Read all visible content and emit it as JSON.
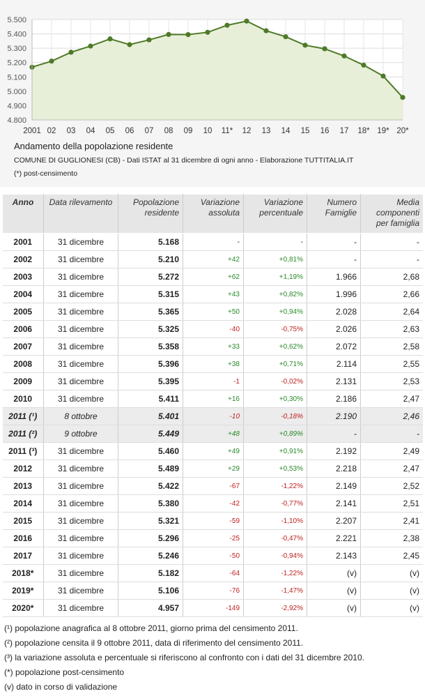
{
  "chart_data": {
    "type": "area",
    "title": "Andamento della popolazione residente",
    "subtitle": "COMUNE DI GUGLIONESI (CB) - Dati ISTAT al 31 dicembre di ogni anno - Elaborazione TUTTITALIA.IT",
    "note": "(*) post-censimento",
    "categories": [
      "2001",
      "02",
      "03",
      "04",
      "05",
      "06",
      "07",
      "08",
      "09",
      "10",
      "11*",
      "12",
      "13",
      "14",
      "15",
      "16",
      "17",
      "18*",
      "19*",
      "20*"
    ],
    "values": [
      5168,
      5210,
      5272,
      5315,
      5365,
      5325,
      5358,
      5396,
      5395,
      5411,
      5460,
      5489,
      5422,
      5380,
      5321,
      5296,
      5246,
      5182,
      5106,
      4957
    ],
    "y_ticks": [
      "4.800",
      "4.900",
      "5.000",
      "5.100",
      "5.200",
      "5.300",
      "5.400",
      "5.500"
    ],
    "ylim": [
      4800,
      5500
    ],
    "grid": true,
    "colors": {
      "line": "#4e7a28",
      "fill": "#e8efd8",
      "marker": "#4e7a28"
    }
  },
  "table": {
    "headers": [
      "Anno",
      "Data rilevamento",
      "Popolazione residente",
      "Variazione assoluta",
      "Variazione percentuale",
      "Numero Famiglie",
      "Media componenti per famiglia"
    ],
    "rows": [
      {
        "anno": "2001",
        "data": "31 dicembre",
        "pop": "5.168",
        "vass": "-",
        "vperc": "-",
        "fam": "-",
        "media": "-",
        "sign": "nil"
      },
      {
        "anno": "2002",
        "data": "31 dicembre",
        "pop": "5.210",
        "vass": "+42",
        "vperc": "+0,81%",
        "fam": "-",
        "media": "-",
        "sign": "pos"
      },
      {
        "anno": "2003",
        "data": "31 dicembre",
        "pop": "5.272",
        "vass": "+62",
        "vperc": "+1,19%",
        "fam": "1.966",
        "media": "2,68",
        "sign": "pos"
      },
      {
        "anno": "2004",
        "data": "31 dicembre",
        "pop": "5.315",
        "vass": "+43",
        "vperc": "+0,82%",
        "fam": "1.996",
        "media": "2,66",
        "sign": "pos"
      },
      {
        "anno": "2005",
        "data": "31 dicembre",
        "pop": "5.365",
        "vass": "+50",
        "vperc": "+0,94%",
        "fam": "2.028",
        "media": "2,64",
        "sign": "pos"
      },
      {
        "anno": "2006",
        "data": "31 dicembre",
        "pop": "5.325",
        "vass": "-40",
        "vperc": "-0,75%",
        "fam": "2.026",
        "media": "2,63",
        "sign": "neg"
      },
      {
        "anno": "2007",
        "data": "31 dicembre",
        "pop": "5.358",
        "vass": "+33",
        "vperc": "+0,62%",
        "fam": "2.072",
        "media": "2,58",
        "sign": "pos"
      },
      {
        "anno": "2008",
        "data": "31 dicembre",
        "pop": "5.396",
        "vass": "+38",
        "vperc": "+0,71%",
        "fam": "2.114",
        "media": "2,55",
        "sign": "pos"
      },
      {
        "anno": "2009",
        "data": "31 dicembre",
        "pop": "5.395",
        "vass": "-1",
        "vperc": "-0,02%",
        "fam": "2.131",
        "media": "2,53",
        "sign": "neg"
      },
      {
        "anno": "2010",
        "data": "31 dicembre",
        "pop": "5.411",
        "vass": "+16",
        "vperc": "+0,30%",
        "fam": "2.186",
        "media": "2,47",
        "sign": "pos"
      },
      {
        "anno": "2011 (¹)",
        "data": "8 ottobre",
        "pop": "5.401",
        "vass": "-10",
        "vperc": "-0,18%",
        "fam": "2.190",
        "media": "2,46",
        "sign": "neg",
        "cens": true
      },
      {
        "anno": "2011 (²)",
        "data": "9 ottobre",
        "pop": "5.449",
        "vass": "+48",
        "vperc": "+0,89%",
        "fam": "-",
        "media": "-",
        "sign": "pos",
        "cens": true
      },
      {
        "anno": "2011 (³)",
        "data": "31 dicembre",
        "pop": "5.460",
        "vass": "+49",
        "vperc": "+0,91%",
        "fam": "2.192",
        "media": "2,49",
        "sign": "pos"
      },
      {
        "anno": "2012",
        "data": "31 dicembre",
        "pop": "5.489",
        "vass": "+29",
        "vperc": "+0,53%",
        "fam": "2.218",
        "media": "2,47",
        "sign": "pos"
      },
      {
        "anno": "2013",
        "data": "31 dicembre",
        "pop": "5.422",
        "vass": "-67",
        "vperc": "-1,22%",
        "fam": "2.149",
        "media": "2,52",
        "sign": "neg"
      },
      {
        "anno": "2014",
        "data": "31 dicembre",
        "pop": "5.380",
        "vass": "-42",
        "vperc": "-0,77%",
        "fam": "2.141",
        "media": "2,51",
        "sign": "neg"
      },
      {
        "anno": "2015",
        "data": "31 dicembre",
        "pop": "5.321",
        "vass": "-59",
        "vperc": "-1,10%",
        "fam": "2.207",
        "media": "2,41",
        "sign": "neg"
      },
      {
        "anno": "2016",
        "data": "31 dicembre",
        "pop": "5.296",
        "vass": "-25",
        "vperc": "-0,47%",
        "fam": "2.221",
        "media": "2,38",
        "sign": "neg"
      },
      {
        "anno": "2017",
        "data": "31 dicembre",
        "pop": "5.246",
        "vass": "-50",
        "vperc": "-0,94%",
        "fam": "2.143",
        "media": "2,45",
        "sign": "neg"
      },
      {
        "anno": "2018*",
        "data": "31 dicembre",
        "pop": "5.182",
        "vass": "-64",
        "vperc": "-1,22%",
        "fam": "(v)",
        "media": "(v)",
        "sign": "neg"
      },
      {
        "anno": "2019*",
        "data": "31 dicembre",
        "pop": "5.106",
        "vass": "-76",
        "vperc": "-1,47%",
        "fam": "(v)",
        "media": "(v)",
        "sign": "neg"
      },
      {
        "anno": "2020*",
        "data": "31 dicembre",
        "pop": "4.957",
        "vass": "-149",
        "vperc": "-2,92%",
        "fam": "(v)",
        "media": "(v)",
        "sign": "neg"
      }
    ]
  },
  "footnotes": [
    "(¹) popolazione anagrafica al 8 ottobre 2011, giorno prima del censimento 2011.",
    "(²) popolazione censita il 9 ottobre 2011, data di riferimento del censimento 2011.",
    "(³) la variazione assoluta e percentuale si riferiscono al confronto con i dati del 31 dicembre 2010.",
    "(*) popolazione post-censimento",
    "(v) dato in corso di validazione"
  ]
}
